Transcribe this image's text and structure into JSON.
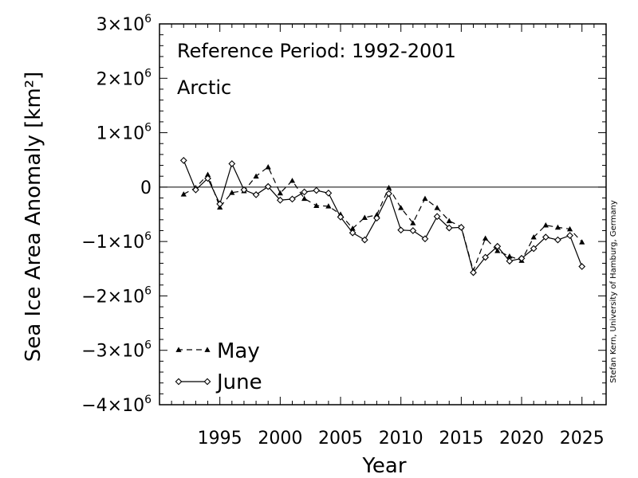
{
  "chart_data": {
    "type": "line",
    "annotations": [
      "Reference Period: 1992-2001",
      "Arctic"
    ],
    "xlabel": "Year",
    "ylabel": "Sea Ice Area Anomaly [km²]",
    "credit": "Stefan Kern, University of Hamburg, Germany",
    "xlim": [
      1990,
      2027
    ],
    "ylim": [
      -4000000,
      3000000
    ],
    "x_ticks": [
      1995,
      2000,
      2005,
      2010,
      2015,
      2020,
      2025
    ],
    "y_ticks": [
      {
        "value": 3000000,
        "mantissa": "3",
        "exp": "6"
      },
      {
        "value": 2000000,
        "mantissa": "2",
        "exp": "6"
      },
      {
        "value": 1000000,
        "mantissa": "1",
        "exp": "6"
      },
      {
        "value": 0,
        "mantissa": "0",
        "exp": ""
      },
      {
        "value": -1000000,
        "mantissa": "−1",
        "exp": "6"
      },
      {
        "value": -2000000,
        "mantissa": "−2",
        "exp": "6"
      },
      {
        "value": -3000000,
        "mantissa": "−3",
        "exp": "6"
      },
      {
        "value": -4000000,
        "mantissa": "−4",
        "exp": "6"
      }
    ],
    "zero_line": true,
    "grid": false,
    "legend_position": "bottom-left",
    "x": [
      1992,
      1993,
      1994,
      1995,
      1996,
      1997,
      1998,
      1999,
      2000,
      2001,
      2002,
      2003,
      2004,
      2005,
      2006,
      2007,
      2008,
      2009,
      2010,
      2011,
      2012,
      2013,
      2014,
      2015,
      2016,
      2017,
      2018,
      2019,
      2020,
      2021,
      2022,
      2023,
      2024,
      2025
    ],
    "series": [
      {
        "name": "May",
        "style": "dashed",
        "marker": "triangle",
        "values": [
          -130000,
          -10000,
          230000,
          -370000,
          -100000,
          -70000,
          200000,
          370000,
          -110000,
          120000,
          -210000,
          -340000,
          -350000,
          -500000,
          -760000,
          -560000,
          -510000,
          -10000,
          -380000,
          -660000,
          -210000,
          -380000,
          -620000,
          -730000,
          -1540000,
          -940000,
          -1170000,
          -1270000,
          -1350000,
          -920000,
          -700000,
          -740000,
          -770000,
          -1010000
        ]
      },
      {
        "name": "June",
        "style": "solid",
        "marker": "diamond",
        "values": [
          490000,
          -50000,
          160000,
          -310000,
          430000,
          -50000,
          -140000,
          10000,
          -240000,
          -220000,
          -90000,
          -60000,
          -110000,
          -550000,
          -840000,
          -970000,
          -570000,
          -120000,
          -790000,
          -800000,
          -950000,
          -540000,
          -750000,
          -740000,
          -1570000,
          -1290000,
          -1090000,
          -1360000,
          -1310000,
          -1130000,
          -920000,
          -970000,
          -890000,
          -1460000
        ]
      }
    ]
  }
}
